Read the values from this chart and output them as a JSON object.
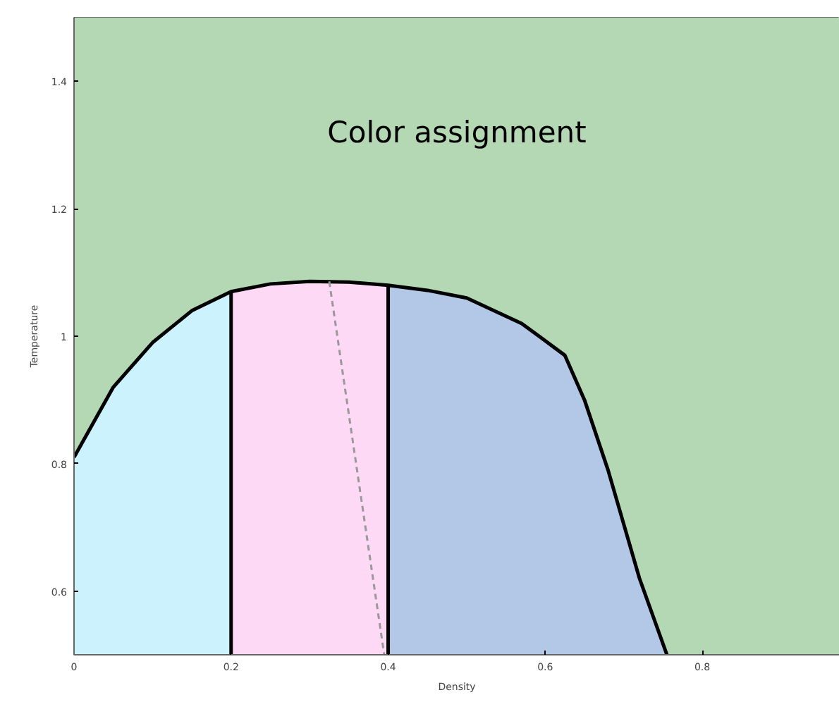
{
  "chart_data": {
    "type": "area",
    "annotations": [
      "Color assignment"
    ],
    "xlabel": "Density",
    "ylabel": "Temperature",
    "xlim": [
      0,
      0.975
    ],
    "ylim": [
      0.5,
      1.5
    ],
    "xticks": [
      0,
      0.2,
      0.4,
      0.6,
      0.8
    ],
    "yticks": [
      0.6,
      0.8,
      {
        "value": 1,
        "label": "1"
      },
      1.2,
      1.4
    ],
    "bands": [
      {
        "axis": "x",
        "from": 0,
        "to": 0.975,
        "label": null,
        "color": "#b3d8b3"
      }
    ],
    "series": [
      {
        "color": "#ccf2fd",
        "x": [
          0,
          0.05,
          0.1,
          0.15,
          0.2
        ],
        "values": [
          0.81,
          0.92,
          0.99,
          1.04,
          1.07
        ]
      },
      {
        "color": "#fdd9f6",
        "x": [
          0.2,
          0.25,
          0.3,
          0.35,
          0.4
        ],
        "values": [
          1.07,
          1.082,
          1.086,
          1.085,
          1.08
        ]
      },
      {
        "color": "#b3c8e6",
        "x": [
          0.4,
          0.45,
          0.5,
          0.57,
          0.625,
          0.65,
          0.68,
          0.72,
          0.755
        ],
        "values": [
          1.08,
          1.072,
          1.06,
          1.02,
          0.97,
          0.9,
          0.79,
          0.62,
          0.5
        ]
      },
      {
        "type": "line",
        "color": "#000000",
        "x": [
          0,
          0.05,
          0.1,
          0.15,
          0.2,
          0.25,
          0.3,
          0.35,
          0.4,
          0.45,
          0.5,
          0.57,
          0.625,
          0.65,
          0.68,
          0.72,
          0.755
        ],
        "values": [
          0.81,
          0.92,
          0.99,
          1.04,
          1.07,
          1.082,
          1.086,
          1.085,
          1.08,
          1.072,
          1.06,
          1.02,
          0.97,
          0.9,
          0.79,
          0.62,
          0.5
        ]
      },
      {
        "type": "line",
        "color": "#000000",
        "x": [
          0.2,
          0.2
        ],
        "values": [
          0.5,
          1.07
        ]
      },
      {
        "type": "line",
        "color": "#000000",
        "x": [
          0.4,
          0.4
        ],
        "values": [
          0.5,
          1.08
        ]
      },
      {
        "type": "line",
        "color": "#999999",
        "line_style": "dashed",
        "x": [
          0.325,
          0.395
        ],
        "values": [
          1.086,
          0.5
        ]
      }
    ]
  }
}
